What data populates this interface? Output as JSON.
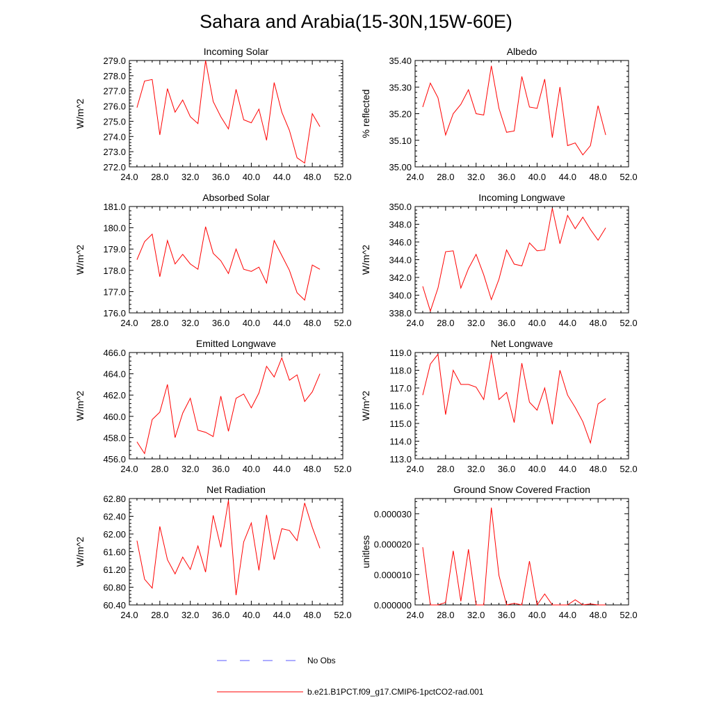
{
  "figure": {
    "title": "Sahara and Arabia(15-30N,15W-60E)"
  },
  "colors": {
    "model_line": "#ff0000",
    "obs_line": "#5a5aff",
    "axis": "#000000",
    "background": "#ffffff"
  },
  "legend": {
    "placement": "bottom-center",
    "items": [
      {
        "label": "No Obs",
        "style": "dashed",
        "color": "#5a5aff"
      },
      {
        "label": "b.e21.B1PCT.f09_g17.CMIP6-1pctCO2-rad.001",
        "style": "solid",
        "color": "#ff0000"
      }
    ]
  },
  "chart_data": [
    {
      "type": "line",
      "title": "Incoming Solar",
      "xlabel": "",
      "ylabel": "W/m^2",
      "xlim": [
        24,
        52
      ],
      "ylim": [
        272,
        279
      ],
      "xticks": [
        24,
        28,
        32,
        36,
        40,
        44,
        48,
        52
      ],
      "xtick_labels": [
        "24.0",
        "28.0",
        "32.0",
        "36.0",
        "40.0",
        "44.0",
        "48.0",
        "52.0"
      ],
      "yticks": [
        272,
        273,
        274,
        275,
        276,
        277,
        278,
        279
      ],
      "ytick_labels": [
        "272.0",
        "273.0",
        "274.0",
        "275.0",
        "276.0",
        "277.0",
        "278.0",
        "279.0"
      ],
      "series": [
        {
          "name": "b.e21.B1PCT.f09_g17.CMIP6-1pctCO2-rad.001",
          "x": [
            25,
            26,
            27,
            28,
            29,
            30,
            31,
            32,
            33,
            34,
            35,
            36,
            37,
            38,
            39,
            40,
            41,
            42,
            43,
            44,
            45,
            46,
            47,
            48,
            49
          ],
          "values": [
            275.9,
            277.65,
            277.75,
            274.1,
            277.15,
            275.6,
            276.4,
            275.3,
            274.85,
            279.0,
            276.3,
            275.3,
            274.5,
            277.1,
            275.1,
            274.9,
            275.8,
            273.75,
            277.55,
            275.6,
            274.4,
            272.6,
            272.25,
            275.5,
            274.65
          ]
        }
      ]
    },
    {
      "type": "line",
      "title": "Albedo",
      "xlabel": "",
      "ylabel": "% reflected",
      "xlim": [
        24,
        52
      ],
      "ylim": [
        35.0,
        35.4
      ],
      "xticks": [
        24,
        28,
        32,
        36,
        40,
        44,
        48,
        52
      ],
      "xtick_labels": [
        "24.0",
        "28.0",
        "32.0",
        "36.0",
        "40.0",
        "44.0",
        "48.0",
        "52.0"
      ],
      "yticks": [
        35.0,
        35.1,
        35.2,
        35.3,
        35.4
      ],
      "ytick_labels": [
        "35.00",
        "35.10",
        "35.20",
        "35.30",
        "35.40"
      ],
      "series": [
        {
          "name": "b.e21.B1PCT.f09_g17.CMIP6-1pctCO2-rad.001",
          "x": [
            25,
            26,
            27,
            28,
            29,
            30,
            31,
            32,
            33,
            34,
            35,
            36,
            37,
            38,
            39,
            40,
            41,
            42,
            43,
            44,
            45,
            46,
            47,
            48,
            49
          ],
          "values": [
            35.225,
            35.315,
            35.26,
            35.12,
            35.2,
            35.235,
            35.29,
            35.2,
            35.195,
            35.38,
            35.22,
            35.13,
            35.135,
            35.34,
            35.225,
            35.22,
            35.33,
            35.11,
            35.3,
            35.08,
            35.09,
            35.045,
            35.08,
            35.23,
            35.12
          ]
        }
      ]
    },
    {
      "type": "line",
      "title": "Absorbed Solar",
      "xlabel": "",
      "ylabel": "W/m^2",
      "xlim": [
        24,
        52
      ],
      "ylim": [
        176,
        181
      ],
      "xticks": [
        24,
        28,
        32,
        36,
        40,
        44,
        48,
        52
      ],
      "xtick_labels": [
        "24.0",
        "28.0",
        "32.0",
        "36.0",
        "40.0",
        "44.0",
        "48.0",
        "52.0"
      ],
      "yticks": [
        176,
        177,
        178,
        179,
        180,
        181
      ],
      "ytick_labels": [
        "176.0",
        "177.0",
        "178.0",
        "179.0",
        "180.0",
        "181.0"
      ],
      "series": [
        {
          "name": "b.e21.B1PCT.f09_g17.CMIP6-1pctCO2-rad.001",
          "x": [
            25,
            26,
            27,
            28,
            29,
            30,
            31,
            32,
            33,
            34,
            35,
            36,
            37,
            38,
            39,
            40,
            41,
            42,
            43,
            44,
            45,
            46,
            47,
            48,
            49
          ],
          "values": [
            178.5,
            179.35,
            179.7,
            177.7,
            179.4,
            178.3,
            178.75,
            178.3,
            178.05,
            180.05,
            178.8,
            178.45,
            177.85,
            179.0,
            178.05,
            177.95,
            178.15,
            177.4,
            179.4,
            178.7,
            178.0,
            176.95,
            176.6,
            178.25,
            178.05
          ]
        }
      ]
    },
    {
      "type": "line",
      "title": "Incoming Longwave",
      "xlabel": "",
      "ylabel": "W/m^2",
      "xlim": [
        24,
        52
      ],
      "ylim": [
        338,
        350
      ],
      "xticks": [
        24,
        28,
        32,
        36,
        40,
        44,
        48,
        52
      ],
      "xtick_labels": [
        "24.0",
        "28.0",
        "32.0",
        "36.0",
        "40.0",
        "44.0",
        "48.0",
        "52.0"
      ],
      "yticks": [
        338,
        340,
        342,
        344,
        346,
        348,
        350
      ],
      "ytick_labels": [
        "338.0",
        "340.0",
        "342.0",
        "344.0",
        "346.0",
        "348.0",
        "350.0"
      ],
      "series": [
        {
          "name": "b.e21.B1PCT.f09_g17.CMIP6-1pctCO2-rad.001",
          "x": [
            25,
            26,
            27,
            28,
            29,
            30,
            31,
            32,
            33,
            34,
            35,
            36,
            37,
            38,
            39,
            40,
            41,
            42,
            43,
            44,
            45,
            46,
            47,
            48,
            49
          ],
          "values": [
            341.0,
            338.2,
            340.8,
            344.9,
            345.0,
            340.8,
            343.0,
            344.6,
            342.3,
            339.5,
            341.8,
            345.1,
            343.5,
            343.3,
            345.9,
            345.0,
            345.1,
            349.8,
            345.8,
            349.0,
            347.5,
            348.8,
            347.4,
            346.2,
            347.6
          ]
        }
      ]
    },
    {
      "type": "line",
      "title": "Emitted Longwave",
      "xlabel": "",
      "ylabel": "W/m^2",
      "xlim": [
        24,
        52
      ],
      "ylim": [
        456,
        466
      ],
      "xticks": [
        24,
        28,
        32,
        36,
        40,
        44,
        48,
        52
      ],
      "xtick_labels": [
        "24.0",
        "28.0",
        "32.0",
        "36.0",
        "40.0",
        "44.0",
        "48.0",
        "52.0"
      ],
      "yticks": [
        456,
        458,
        460,
        462,
        464,
        466
      ],
      "ytick_labels": [
        "456.0",
        "458.0",
        "460.0",
        "462.0",
        "464.0",
        "466.0"
      ],
      "series": [
        {
          "name": "b.e21.B1PCT.f09_g17.CMIP6-1pctCO2-rad.001",
          "x": [
            25,
            26,
            27,
            28,
            29,
            30,
            31,
            32,
            33,
            34,
            35,
            36,
            37,
            38,
            39,
            40,
            41,
            42,
            43,
            44,
            45,
            46,
            47,
            48,
            49
          ],
          "values": [
            457.6,
            456.5,
            459.7,
            460.4,
            463.0,
            458.0,
            460.3,
            461.7,
            458.7,
            458.5,
            458.1,
            461.9,
            458.6,
            461.7,
            462.1,
            460.8,
            462.2,
            464.7,
            463.7,
            465.5,
            463.4,
            463.9,
            461.4,
            462.3,
            464.0
          ]
        }
      ]
    },
    {
      "type": "line",
      "title": "Net Longwave",
      "xlabel": "",
      "ylabel": "W/m^2",
      "xlim": [
        24,
        52
      ],
      "ylim": [
        113,
        119
      ],
      "xticks": [
        24,
        28,
        32,
        36,
        40,
        44,
        48,
        52
      ],
      "xtick_labels": [
        "24.0",
        "28.0",
        "32.0",
        "36.0",
        "40.0",
        "44.0",
        "48.0",
        "52.0"
      ],
      "yticks": [
        113,
        114,
        115,
        116,
        117,
        118,
        119
      ],
      "ytick_labels": [
        "113.0",
        "114.0",
        "115.0",
        "116.0",
        "117.0",
        "118.0",
        "119.0"
      ],
      "series": [
        {
          "name": "b.e21.B1PCT.f09_g17.CMIP6-1pctCO2-rad.001",
          "x": [
            25,
            26,
            27,
            28,
            29,
            30,
            31,
            32,
            33,
            34,
            35,
            36,
            37,
            38,
            39,
            40,
            41,
            42,
            43,
            44,
            45,
            46,
            47,
            48,
            49
          ],
          "values": [
            116.6,
            118.35,
            118.9,
            115.5,
            118.0,
            117.2,
            117.2,
            117.05,
            116.35,
            118.9,
            116.35,
            116.75,
            115.05,
            118.4,
            116.2,
            115.75,
            117.0,
            114.95,
            118.0,
            116.6,
            115.9,
            115.1,
            113.9,
            116.1,
            116.4
          ]
        }
      ]
    },
    {
      "type": "line",
      "title": "Net Radiation",
      "xlabel": "",
      "ylabel": "W/m^2",
      "xlim": [
        24,
        52
      ],
      "ylim": [
        60.4,
        62.8
      ],
      "xticks": [
        24,
        28,
        32,
        36,
        40,
        44,
        48,
        52
      ],
      "xtick_labels": [
        "24.0",
        "28.0",
        "32.0",
        "36.0",
        "40.0",
        "44.0",
        "48.0",
        "52.0"
      ],
      "yticks": [
        60.4,
        60.8,
        61.2,
        61.6,
        62.0,
        62.4,
        62.8
      ],
      "ytick_labels": [
        "60.40",
        "60.80",
        "61.20",
        "61.60",
        "62.00",
        "62.40",
        "62.80"
      ],
      "series": [
        {
          "name": "b.e21.B1PCT.f09_g17.CMIP6-1pctCO2-rad.001",
          "x": [
            25,
            26,
            27,
            28,
            29,
            30,
            31,
            32,
            33,
            34,
            35,
            36,
            37,
            38,
            39,
            40,
            41,
            42,
            43,
            44,
            45,
            46,
            47,
            48,
            49
          ],
          "values": [
            61.85,
            60.98,
            60.78,
            62.17,
            61.42,
            61.1,
            61.48,
            61.2,
            61.73,
            61.14,
            62.42,
            61.7,
            62.76,
            60.62,
            61.82,
            62.25,
            61.18,
            62.43,
            61.42,
            62.12,
            62.08,
            61.85,
            62.7,
            62.15,
            61.68
          ]
        }
      ]
    },
    {
      "type": "line",
      "title": "Ground Snow Covered Fraction",
      "xlabel": "",
      "ylabel": "unitless",
      "xlim": [
        24,
        52
      ],
      "ylim": [
        0,
        3.5e-05
      ],
      "xticks": [
        24,
        28,
        32,
        36,
        40,
        44,
        48,
        52
      ],
      "xtick_labels": [
        "24.0",
        "28.0",
        "32.0",
        "36.0",
        "40.0",
        "44.0",
        "48.0",
        "52.0"
      ],
      "yticks": [
        0,
        1e-05,
        2e-05,
        3e-05
      ],
      "ytick_labels": [
        "0.000000",
        "0.000010",
        "0.000020",
        "0.000030"
      ],
      "series": [
        {
          "name": "b.e21.B1PCT.f09_g17.CMIP6-1pctCO2-rad.001",
          "x": [
            25,
            26,
            27,
            28,
            29,
            30,
            31,
            32,
            33,
            34,
            35,
            36,
            37,
            38,
            39,
            40,
            41,
            42,
            43,
            44,
            45,
            46,
            47,
            48,
            49
          ],
          "values": [
            1.9e-05,
            0.0,
            0.0,
            8e-07,
            1.78e-05,
            1.2e-06,
            1.83e-05,
            0.0,
            0.0,
            3.2e-05,
            9.7e-06,
            0.0,
            5e-07,
            0.0,
            1.44e-05,
            0.0,
            3.6e-06,
            0.0,
            0.0,
            0.0,
            1.7e-06,
            0.0,
            3e-07,
            0.0,
            0.0
          ]
        }
      ]
    }
  ]
}
